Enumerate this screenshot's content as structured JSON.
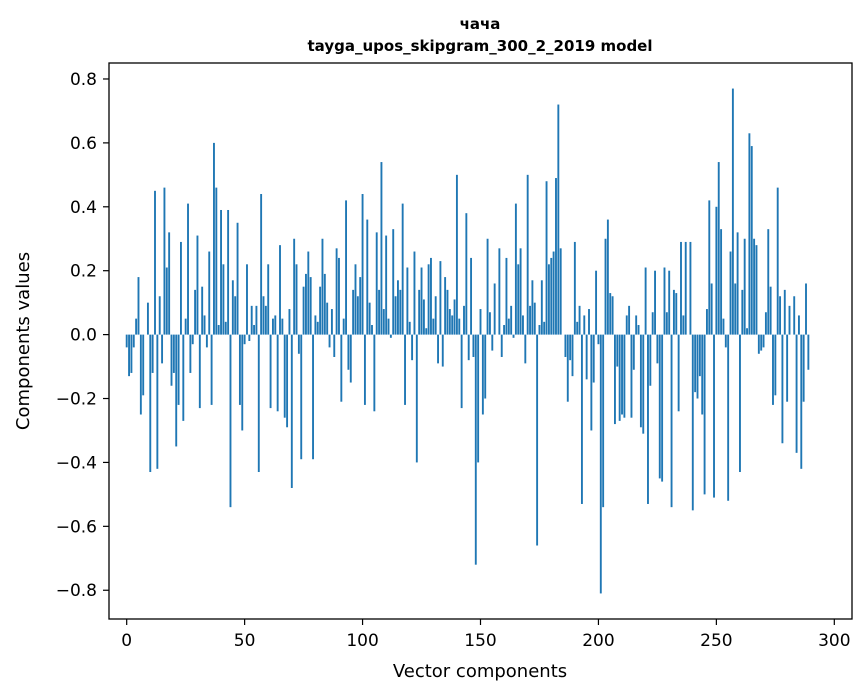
{
  "chart_data": {
    "type": "bar",
    "title": "чача",
    "subtitle": "tayga_upos_skipgram_300_2_2019 model",
    "xlabel": "Vector components",
    "ylabel": "Components values",
    "xlim": [
      -7.5,
      307.5
    ],
    "ylim": [
      -0.89,
      0.85
    ],
    "xticks": [
      0,
      50,
      100,
      150,
      200,
      250,
      300
    ],
    "xtick_labels": [
      "0",
      "50",
      "100",
      "150",
      "200",
      "250",
      "300"
    ],
    "yticks": [
      -0.8,
      -0.6,
      -0.4,
      -0.2,
      0.0,
      0.2,
      0.4,
      0.6,
      0.8
    ],
    "ytick_labels": [
      "−0.8",
      "−0.6",
      "−0.4",
      "−0.2",
      "0.0",
      "0.2",
      "0.4",
      "0.6",
      "0.8"
    ],
    "bar_color": "#1f77b4",
    "values": [
      -0.04,
      -0.13,
      -0.12,
      -0.04,
      0.05,
      0.18,
      -0.25,
      -0.19,
      0.0,
      0.1,
      -0.43,
      -0.12,
      0.45,
      -0.42,
      0.12,
      -0.09,
      0.46,
      0.21,
      0.32,
      -0.16,
      -0.12,
      -0.35,
      -0.22,
      0.29,
      -0.27,
      0.05,
      0.41,
      -0.12,
      -0.03,
      0.14,
      0.31,
      -0.23,
      0.15,
      0.06,
      -0.04,
      0.26,
      -0.22,
      0.6,
      0.46,
      0.03,
      0.39,
      0.22,
      0.04,
      0.39,
      -0.54,
      0.17,
      0.12,
      0.35,
      -0.22,
      -0.3,
      -0.03,
      0.22,
      -0.02,
      0.09,
      0.03,
      0.09,
      -0.43,
      0.44,
      0.12,
      0.09,
      0.22,
      -0.23,
      0.05,
      0.06,
      -0.24,
      0.28,
      0.05,
      -0.26,
      -0.29,
      0.08,
      -0.48,
      0.3,
      0.22,
      -0.06,
      -0.39,
      0.15,
      0.19,
      0.26,
      0.18,
      -0.39,
      0.06,
      0.04,
      0.15,
      0.3,
      0.19,
      0.1,
      -0.04,
      0.08,
      -0.07,
      0.27,
      0.24,
      -0.21,
      0.05,
      0.42,
      -0.11,
      -0.15,
      0.14,
      0.22,
      0.12,
      0.18,
      0.44,
      -0.22,
      0.36,
      0.1,
      0.03,
      -0.24,
      0.32,
      0.14,
      0.54,
      0.08,
      0.31,
      0.05,
      -0.01,
      0.33,
      0.12,
      0.17,
      0.14,
      0.41,
      -0.22,
      0.21,
      0.04,
      -0.08,
      0.26,
      -0.4,
      0.14,
      0.21,
      0.11,
      0.02,
      0.22,
      0.24,
      0.05,
      0.12,
      -0.09,
      0.23,
      -0.1,
      0.18,
      0.14,
      0.08,
      0.06,
      0.11,
      0.5,
      0.05,
      -0.23,
      0.09,
      0.38,
      -0.08,
      0.24,
      -0.07,
      -0.72,
      -0.4,
      0.08,
      -0.25,
      -0.2,
      0.3,
      0.07,
      -0.05,
      0.16,
      0.0,
      0.27,
      -0.07,
      0.03,
      0.24,
      0.05,
      0.09,
      -0.01,
      0.41,
      0.22,
      0.27,
      0.06,
      -0.09,
      0.5,
      0.09,
      0.17,
      0.1,
      -0.66,
      0.03,
      0.17,
      0.04,
      0.48,
      0.22,
      0.24,
      0.26,
      0.49,
      0.72,
      0.27,
      0.0,
      -0.07,
      -0.21,
      -0.08,
      -0.13,
      0.29,
      0.04,
      0.09,
      -0.53,
      0.06,
      -0.14,
      0.08,
      -0.3,
      -0.15,
      0.2,
      -0.03,
      -0.81,
      -0.54,
      0.3,
      0.36,
      0.13,
      0.12,
      -0.28,
      -0.1,
      -0.27,
      -0.25,
      -0.26,
      0.06,
      0.09,
      -0.26,
      -0.11,
      0.06,
      0.03,
      -0.29,
      -0.31,
      0.21,
      -0.53,
      -0.16,
      0.07,
      0.2,
      -0.09,
      -0.45,
      -0.46,
      0.21,
      0.07,
      0.2,
      -0.54,
      0.14,
      0.13,
      -0.24,
      0.29,
      0.06,
      0.29,
      0.0,
      0.29,
      -0.55,
      -0.18,
      -0.2,
      -0.13,
      -0.25,
      -0.5,
      0.08,
      0.42,
      0.16,
      -0.51,
      0.4,
      0.54,
      0.33,
      0.05,
      -0.04,
      -0.52,
      0.26,
      0.77,
      0.16,
      0.32,
      -0.43,
      0.14,
      0.3,
      0.02,
      0.63,
      0.59,
      0.3,
      0.28,
      -0.06,
      -0.05,
      -0.04,
      0.07,
      0.33,
      0.15,
      -0.22,
      -0.19,
      0.46,
      0.12,
      -0.34,
      0.14,
      -0.21,
      0.09,
      0.0,
      0.12,
      -0.37,
      0.06,
      -0.42,
      -0.21,
      0.16,
      -0.11
    ]
  }
}
